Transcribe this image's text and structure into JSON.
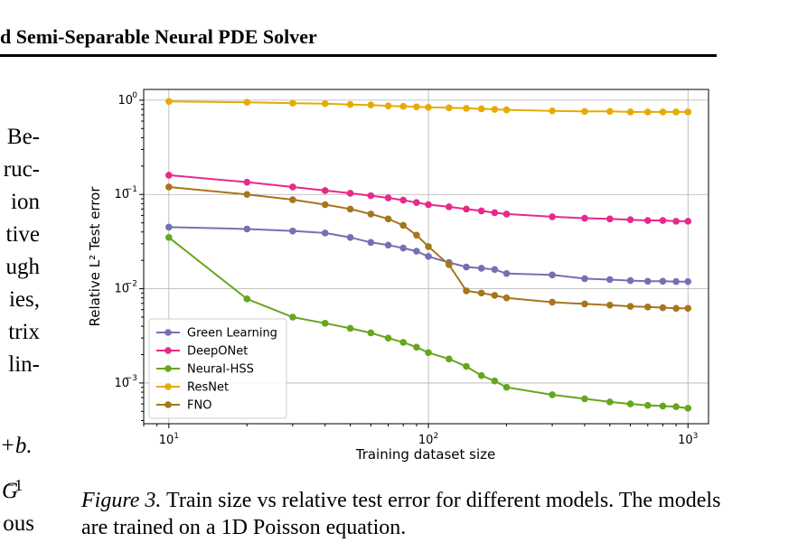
{
  "header": {
    "title": "d Semi-Separable Neural PDE Solver"
  },
  "left_column_fragments": [
    "Be-",
    "ruc-",
    "ion",
    "tive",
    "ugh",
    "ies,",
    "trix",
    "lin-"
  ],
  "equation_fragment": "+b.",
  "equation_fragment_2": "G",
  "equation_fragment_2_sup": "−1",
  "bottom_fragment": "ous",
  "figure": {
    "label": "Figure 3.",
    "caption": "Train size vs relative test error for different models. The models are trained on a 1D Poisson equation."
  },
  "chart_data": {
    "type": "line",
    "xlabel": "Training dataset size",
    "ylabel": "Relative L² Test error",
    "xscale": "log",
    "yscale": "log",
    "xlim": [
      8,
      1200
    ],
    "ylim": [
      0.00037,
      1.3
    ],
    "grid": true,
    "legend_position": "lower-left",
    "x": [
      10,
      20,
      30,
      40,
      50,
      60,
      70,
      80,
      90,
      100,
      120,
      140,
      160,
      180,
      200,
      300,
      400,
      500,
      600,
      700,
      800,
      900,
      1000
    ],
    "series": [
      {
        "name": "Green Learning",
        "color": "#7570b3",
        "values": [
          0.045,
          0.043,
          0.041,
          0.039,
          0.035,
          0.031,
          0.029,
          0.027,
          0.025,
          0.022,
          0.019,
          0.017,
          0.0165,
          0.016,
          0.0145,
          0.014,
          0.0128,
          0.0125,
          0.0122,
          0.012,
          0.012,
          0.0119,
          0.0119
        ]
      },
      {
        "name": "DeepONet",
        "color": "#e7298a",
        "values": [
          0.16,
          0.135,
          0.12,
          0.11,
          0.103,
          0.097,
          0.092,
          0.087,
          0.082,
          0.078,
          0.074,
          0.07,
          0.067,
          0.064,
          0.062,
          0.058,
          0.056,
          0.055,
          0.054,
          0.053,
          0.053,
          0.052,
          0.052
        ]
      },
      {
        "name": "Neural-HSS",
        "color": "#66a61e",
        "values": [
          0.035,
          0.0078,
          0.005,
          0.0043,
          0.0038,
          0.0034,
          0.003,
          0.0027,
          0.0024,
          0.0021,
          0.0018,
          0.0015,
          0.0012,
          0.00105,
          0.0009,
          0.00075,
          0.00068,
          0.00063,
          0.0006,
          0.00058,
          0.00057,
          0.00056,
          0.00054
        ]
      },
      {
        "name": "ResNet",
        "color": "#e6ab02",
        "values": [
          0.97,
          0.95,
          0.93,
          0.92,
          0.9,
          0.89,
          0.87,
          0.86,
          0.85,
          0.84,
          0.83,
          0.82,
          0.81,
          0.8,
          0.79,
          0.77,
          0.76,
          0.76,
          0.75,
          0.75,
          0.75,
          0.75,
          0.75
        ]
      },
      {
        "name": "FNO",
        "color": "#a6761d",
        "values": [
          0.12,
          0.1,
          0.088,
          0.078,
          0.07,
          0.062,
          0.055,
          0.047,
          0.037,
          0.028,
          0.018,
          0.0095,
          0.009,
          0.0085,
          0.008,
          0.0072,
          0.0069,
          0.0067,
          0.0065,
          0.0064,
          0.0063,
          0.0062,
          0.0062
        ]
      }
    ]
  }
}
